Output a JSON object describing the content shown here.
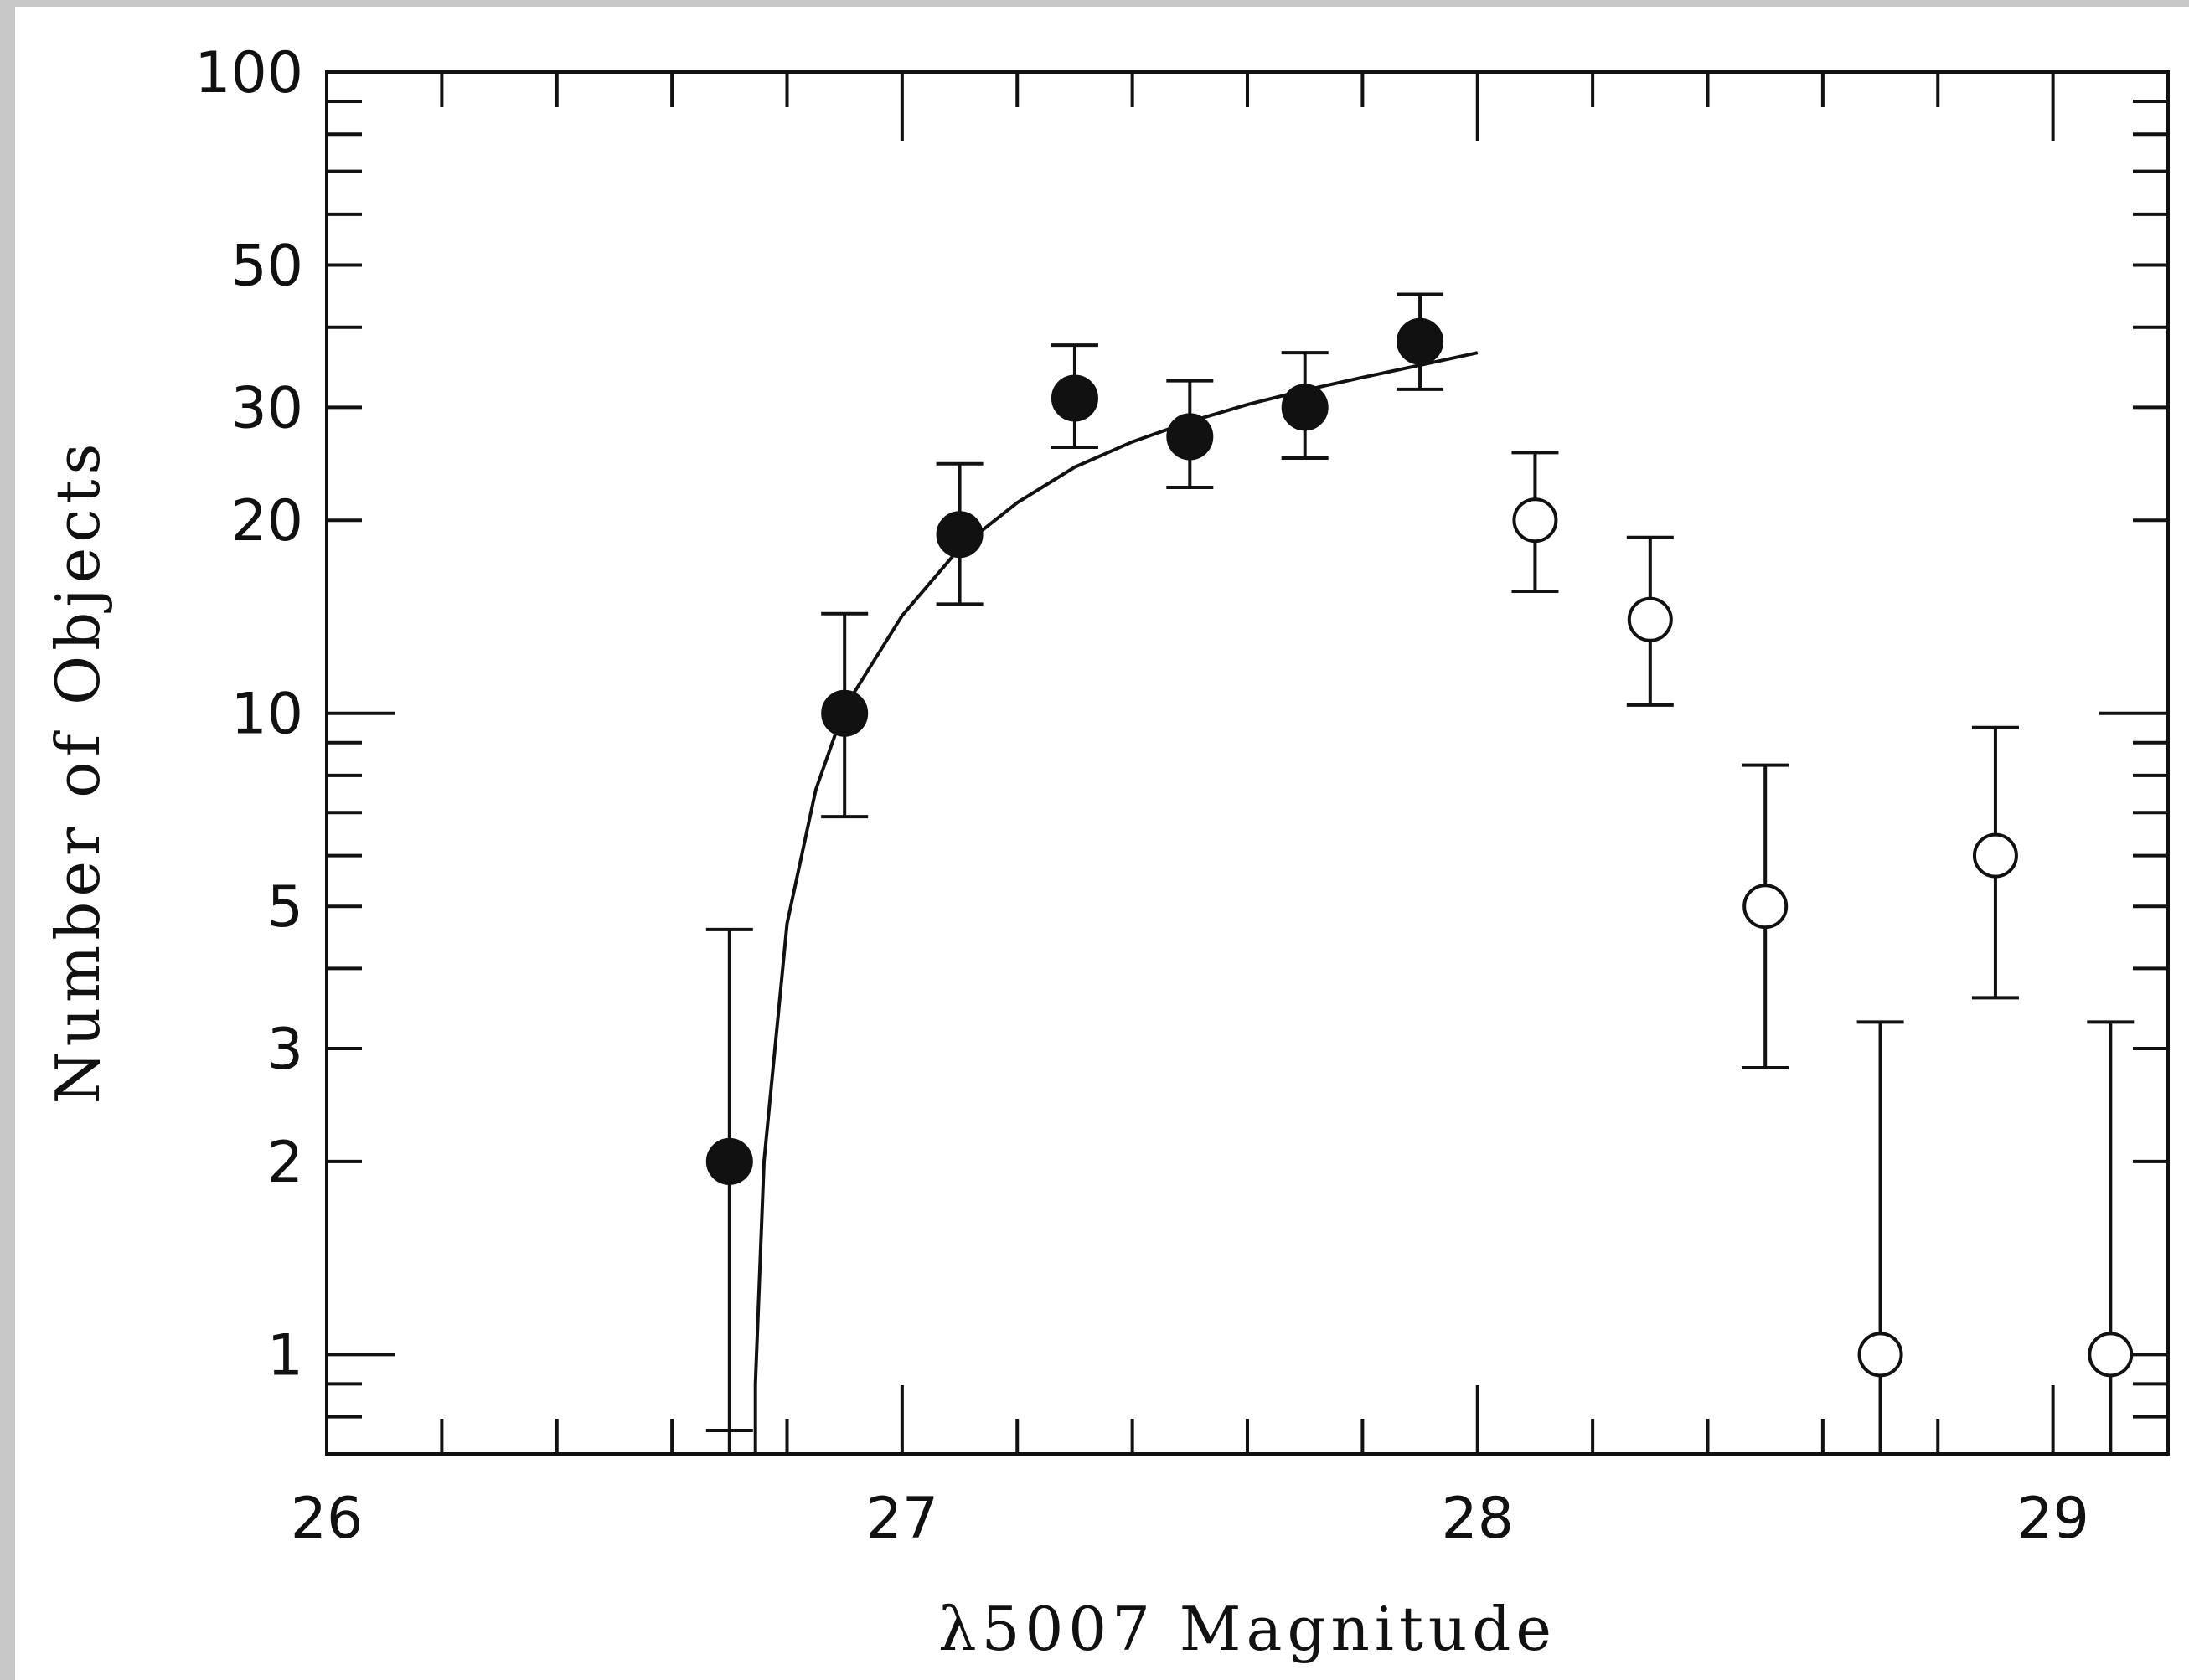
{
  "chart_data": {
    "type": "scatter",
    "title": "",
    "xlabel": "λ5007 Magnitude",
    "ylabel": "Number of Objects",
    "xlim": [
      26,
      29.2
    ],
    "ylim": [
      0.7,
      100
    ],
    "yscale": "log",
    "x_ticks": [
      "26",
      "27",
      "28",
      "29"
    ],
    "y_ticks": [
      "1",
      "2",
      "3",
      "5",
      "10",
      "20",
      "30",
      "50",
      "100"
    ],
    "grid": false,
    "legend": "none",
    "series": [
      {
        "marker": "filled-circle",
        "points": [
          {
            "x": 26.7,
            "y": 2,
            "err_low": 0.7,
            "err_high": 4.6
          },
          {
            "x": 26.9,
            "y": 10,
            "err_low": 6.9,
            "err_high": 14.3
          },
          {
            "x": 27.1,
            "y": 19,
            "err_low": 14.8,
            "err_high": 24.5
          },
          {
            "x": 27.3,
            "y": 31,
            "err_low": 26,
            "err_high": 37.5
          },
          {
            "x": 27.5,
            "y": 27,
            "err_low": 22.5,
            "err_high": 33
          },
          {
            "x": 27.7,
            "y": 30,
            "err_low": 25,
            "err_high": 36.5
          },
          {
            "x": 27.9,
            "y": 38,
            "err_low": 32,
            "err_high": 45
          }
        ]
      },
      {
        "marker": "open-circle",
        "points": [
          {
            "x": 28.1,
            "y": 20,
            "err_low": 15.5,
            "err_high": 25.5
          },
          {
            "x": 28.3,
            "y": 14,
            "err_low": 10.3,
            "err_high": 18.8
          },
          {
            "x": 28.5,
            "y": 5,
            "err_low": 2.8,
            "err_high": 8.3
          },
          {
            "x": 28.7,
            "y": 1,
            "err_low": 0.7,
            "err_high": 3.3
          },
          {
            "x": 28.9,
            "y": 6,
            "err_low": 3.6,
            "err_high": 9.5
          },
          {
            "x": 29.1,
            "y": 1,
            "err_low": 0.7,
            "err_high": 3.3
          }
        ]
      }
    ],
    "fit_curve": {
      "type": "line",
      "points": [
        [
          26.745,
          0.9
        ],
        [
          26.76,
          2.0
        ],
        [
          26.8,
          4.7
        ],
        [
          26.85,
          7.6
        ],
        [
          26.9,
          10.2
        ],
        [
          27.0,
          14.2
        ],
        [
          27.1,
          18.1
        ],
        [
          27.2,
          21.3
        ],
        [
          27.3,
          24.2
        ],
        [
          27.4,
          26.5
        ],
        [
          27.5,
          28.5
        ],
        [
          27.6,
          30.3
        ],
        [
          27.7,
          31.9
        ],
        [
          27.8,
          33.4
        ],
        [
          27.9,
          34.9
        ],
        [
          28.0,
          36.5
        ]
      ]
    }
  }
}
